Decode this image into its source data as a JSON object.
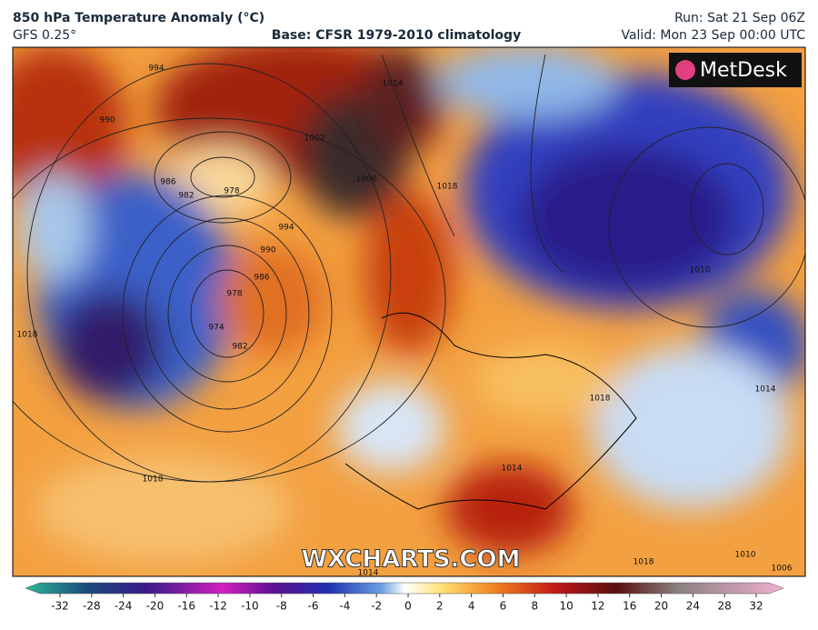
{
  "header": {
    "title": "850 hPa Temperature Anomaly (°C)",
    "model": "GFS 0.25°",
    "base": "Base: CFSR 1979-2010 climatology",
    "run": "Run: Sat 21 Sep 06Z",
    "valid": "Valid: Mon 23 Sep 00:00 UTC"
  },
  "map": {
    "logo": "MetDesk",
    "watermark": "WXCHARTS.COM",
    "isobar_labels": [
      "994",
      "990",
      "986",
      "982",
      "978",
      "990",
      "986",
      "994",
      "978",
      "974",
      "982",
      "1002",
      "1006",
      "1014",
      "1018",
      "1018",
      "1018",
      "1018",
      "1014",
      "1010",
      "1014",
      "1018",
      "1010",
      "1006",
      "1014"
    ]
  },
  "colorbar": {
    "ticks": [
      -32,
      -28,
      -24,
      -20,
      -16,
      -12,
      -10,
      -8,
      -6,
      -4,
      -2,
      0,
      2,
      4,
      6,
      8,
      10,
      12,
      16,
      20,
      24,
      28,
      32
    ]
  }
}
